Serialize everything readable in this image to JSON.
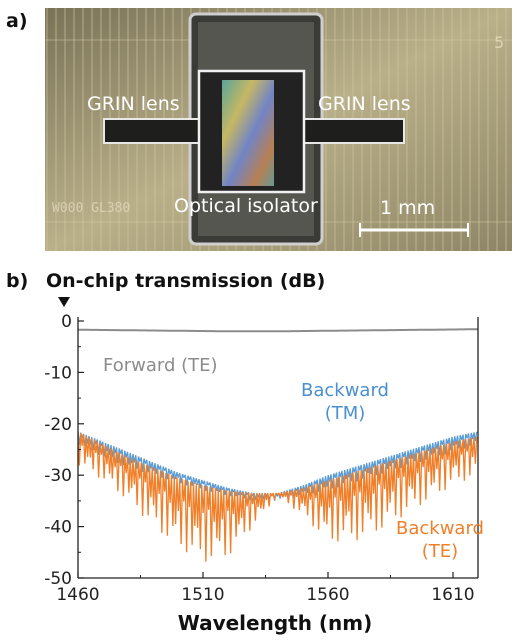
{
  "panel_a": {
    "letter": "a)",
    "labels": {
      "grin_left": "GRIN lens",
      "grin_right": "GRIN lens",
      "isolator": "Optical isolator",
      "scale_bar": "1 mm",
      "chip_text": "W000 GL380",
      "corner_digit": "5"
    }
  },
  "panel_b": {
    "letter": "b)"
  },
  "colors": {
    "forward_te": "#8c8c8c",
    "backward_tm": "#5a9bd5",
    "backward_te": "#f07f2a",
    "forward_label": "#8c8c8c",
    "backward_tm_label": "#4a8fd0",
    "backward_te_label": "#f07f2a"
  },
  "chart_data": {
    "type": "line",
    "title": "On-chip transmission (dB)",
    "xlabel": "Wavelength (nm)",
    "ylabel": "",
    "xlim": [
      1460,
      1620
    ],
    "ylim": [
      -50,
      0
    ],
    "xticks": [
      1460,
      1510,
      1560,
      1610
    ],
    "yticks": [
      0,
      -10,
      -20,
      -30,
      -40,
      -50
    ],
    "grid": false,
    "legend": "inline labels",
    "series": [
      {
        "name": "Forward (TE)",
        "label_lines": [
          "Forward (TE)"
        ],
        "style": "smooth",
        "x": [
          1460,
          1480,
          1500,
          1520,
          1540,
          1560,
          1580,
          1600,
          1620
        ],
        "y": [
          -1.7,
          -1.8,
          -1.9,
          -2.0,
          -2.0,
          -1.9,
          -1.8,
          -1.7,
          -1.6
        ]
      },
      {
        "name": "Backward (TM)",
        "label_lines": [
          "Backward",
          "(TM)"
        ],
        "style": "ripple",
        "x": [
          1460,
          1470,
          1480,
          1490,
          1500,
          1510,
          1520,
          1530,
          1540,
          1550,
          1560,
          1570,
          1580,
          1590,
          1600,
          1610,
          1620
        ],
        "upper": [
          -21.5,
          -23.5,
          -25.5,
          -27.5,
          -29.5,
          -31.0,
          -32.5,
          -33.5,
          -33.5,
          -32.0,
          -30.0,
          -28.5,
          -27.0,
          -25.5,
          -24.0,
          -22.5,
          -21.5
        ],
        "lower": [
          -24.0,
          -26.5,
          -28.5,
          -30.0,
          -31.5,
          -33.0,
          -34.0,
          -35.0,
          -35.0,
          -34.0,
          -33.0,
          -31.5,
          -30.0,
          -28.5,
          -27.0,
          -25.5,
          -24.0
        ]
      },
      {
        "name": "Backward (TE)",
        "label_lines": [
          "Backward",
          "(TE)"
        ],
        "style": "ripple",
        "x": [
          1460,
          1470,
          1480,
          1490,
          1500,
          1510,
          1520,
          1530,
          1540,
          1550,
          1560,
          1570,
          1580,
          1590,
          1600,
          1610,
          1620
        ],
        "upper": [
          -21.5,
          -24.0,
          -26.5,
          -28.5,
          -30.5,
          -32.0,
          -33.0,
          -33.5,
          -33.5,
          -32.5,
          -31.0,
          -29.5,
          -28.0,
          -26.5,
          -25.0,
          -23.5,
          -22.5
        ],
        "lower": [
          -28.0,
          -31.0,
          -35.0,
          -40.0,
          -44.0,
          -47.0,
          -46.0,
          -40.0,
          -34.0,
          -38.0,
          -43.0,
          -43.0,
          -41.0,
          -38.0,
          -35.0,
          -32.0,
          -30.0
        ]
      }
    ]
  }
}
